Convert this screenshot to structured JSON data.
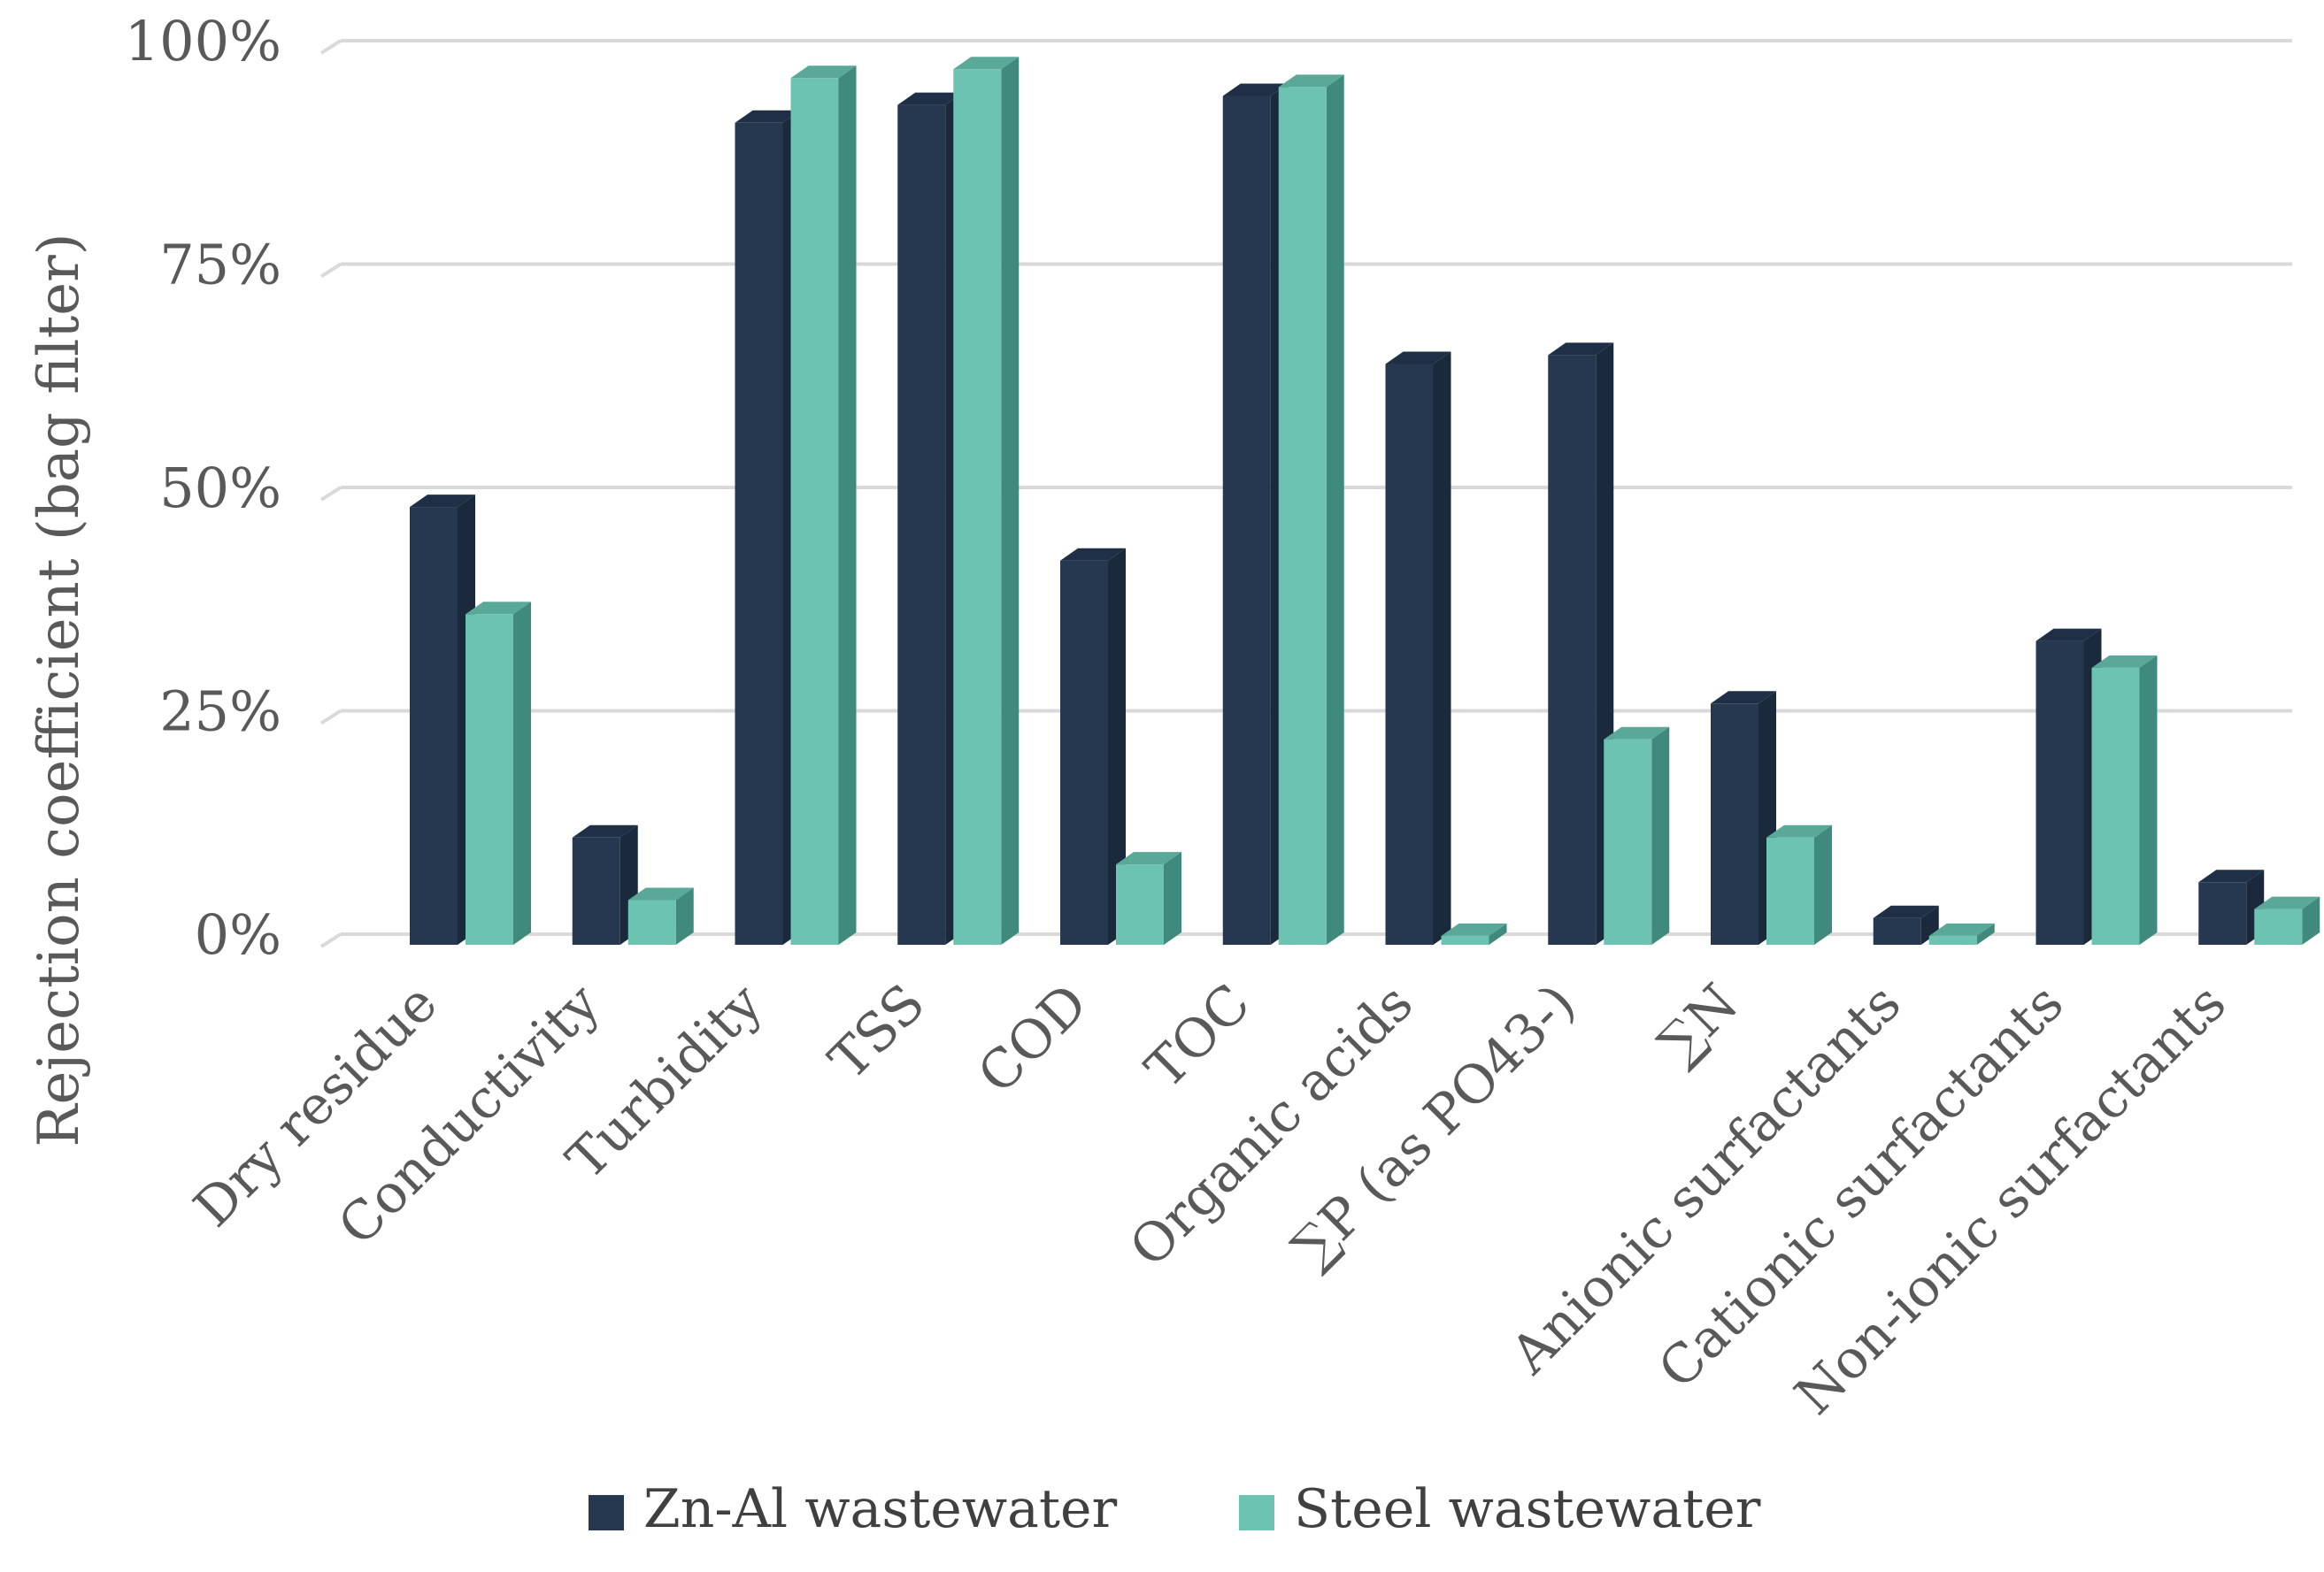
{
  "chart_data": {
    "type": "bar",
    "title": "",
    "xlabel": "",
    "ylabel": "Rejection coefficient (bag filter)",
    "ylim": [
      0,
      100
    ],
    "y_ticks": [
      0,
      25,
      50,
      75,
      100
    ],
    "y_tick_labels": [
      "0%",
      "25%",
      "50%",
      "75%",
      "100%"
    ],
    "grid": true,
    "legend_position": "bottom",
    "categories": [
      "Dry residue",
      "Conductivity",
      "Turbidity",
      "TSS",
      "COD",
      "TOC",
      "Organic acids",
      "∑P (as PO43-)",
      "∑N",
      "Anionic surfactants",
      "Cationic surfactants",
      "Non-ionic surfactants"
    ],
    "series": [
      {
        "name": "Zn-Al wastewater",
        "color": "#253850",
        "side_color": "#1a2a3c",
        "top_color": "#1f3046",
        "values": [
          49,
          12,
          92,
          94,
          43,
          95,
          65,
          66,
          27,
          3,
          34,
          7
        ]
      },
      {
        "name": "Steel wastewater",
        "color": "#6cc3b2",
        "side_color": "#3f8a7c",
        "top_color": "#59a898",
        "values": [
          37,
          5,
          97,
          98,
          9,
          96,
          1,
          23,
          12,
          1,
          31,
          4
        ]
      }
    ]
  }
}
